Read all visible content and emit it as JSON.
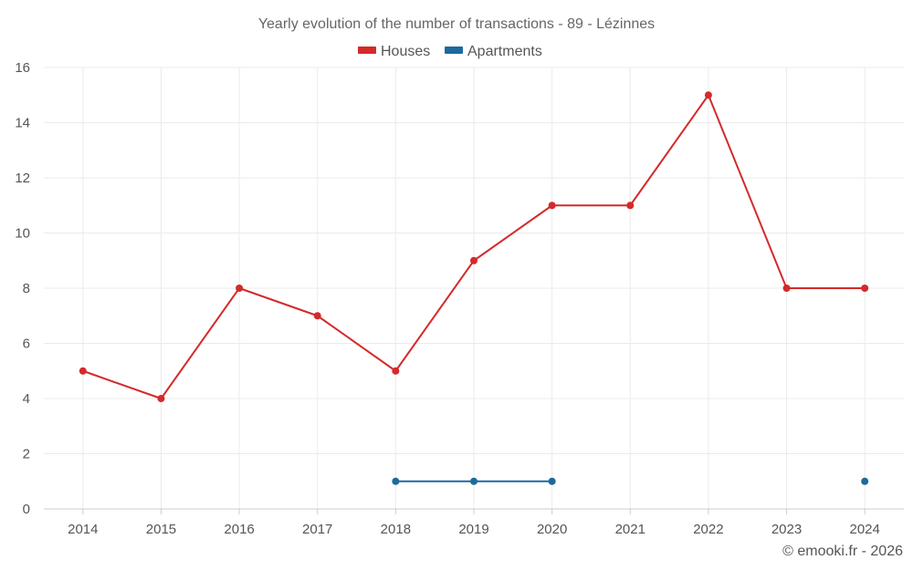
{
  "chart_data": {
    "type": "line",
    "title": "Yearly evolution of the number of transactions - 89 - Lézinnes",
    "xlabel": "",
    "ylabel": "",
    "categories": [
      "2014",
      "2015",
      "2016",
      "2017",
      "2018",
      "2019",
      "2020",
      "2021",
      "2022",
      "2023",
      "2024"
    ],
    "ylim": [
      0,
      16
    ],
    "yticks": [
      0,
      2,
      4,
      6,
      8,
      10,
      12,
      14,
      16
    ],
    "grid": true,
    "legend_position": "top-center",
    "series": [
      {
        "name": "Houses",
        "color": "#d42a2a",
        "values": [
          5,
          4,
          8,
          7,
          5,
          9,
          11,
          11,
          15,
          8,
          8
        ]
      },
      {
        "name": "Apartments",
        "color": "#1c6a9c",
        "values": [
          null,
          null,
          null,
          null,
          1,
          1,
          1,
          null,
          null,
          null,
          1
        ]
      }
    ]
  },
  "credit": "© emooki.fr - 2026"
}
